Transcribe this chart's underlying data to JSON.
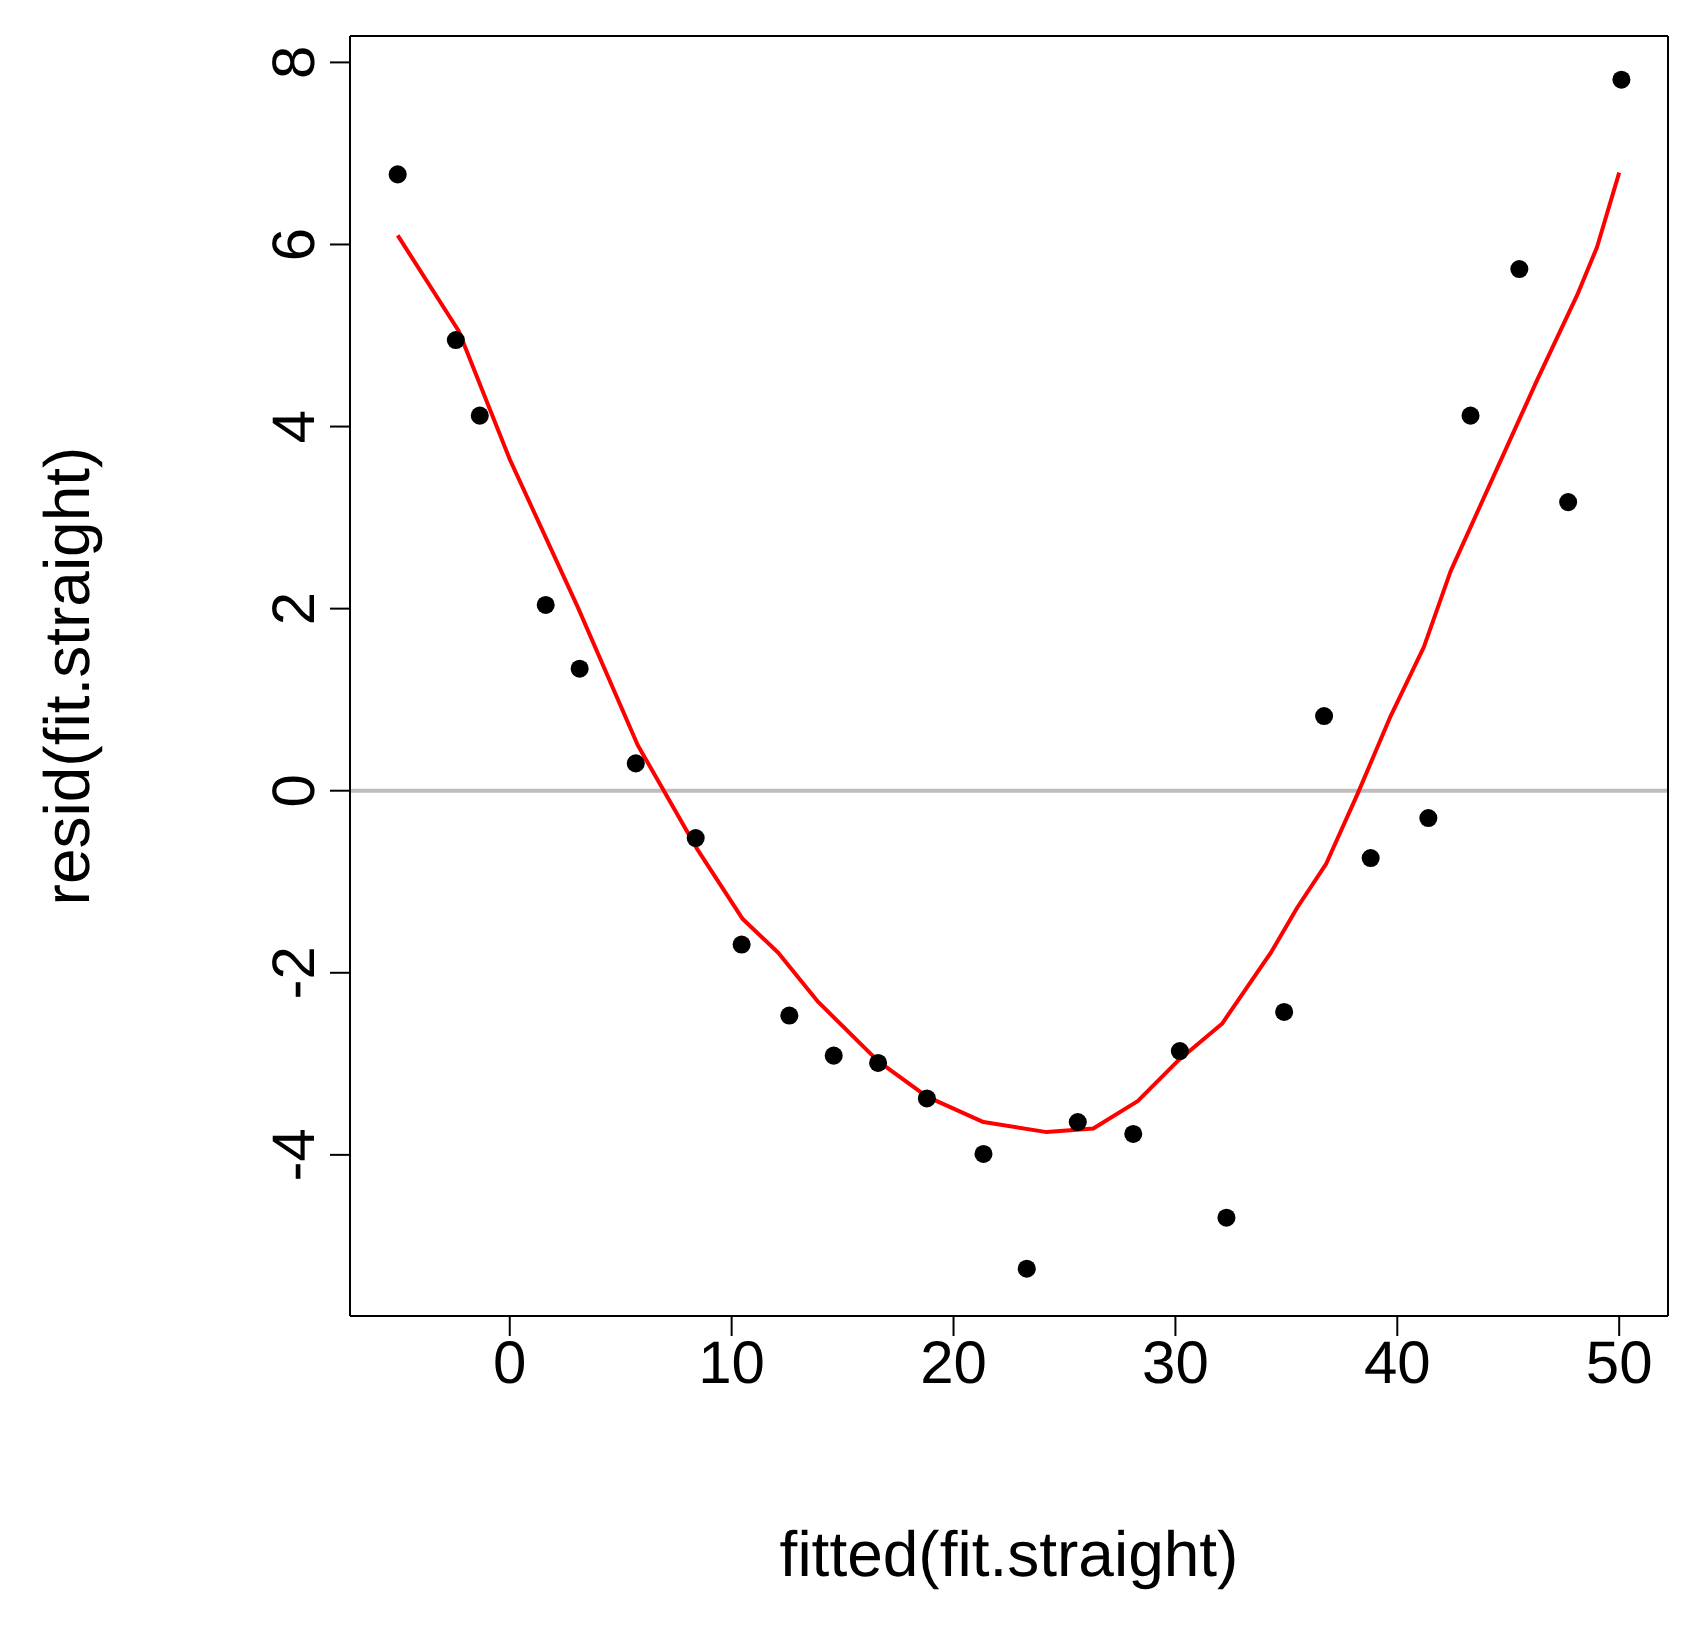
{
  "chart_data": {
    "type": "scatter",
    "xlabel": "fitted(fit.straight)",
    "ylabel": "resid(fit.straight)",
    "xlim": [
      -7.2,
      52.2
    ],
    "ylim": [
      -5.77,
      8.29
    ],
    "xticks": [
      0,
      10,
      20,
      30,
      40,
      50
    ],
    "yticks": [
      -4,
      -2,
      0,
      2,
      4,
      6,
      8
    ],
    "grid": false,
    "ref_lines": [
      {
        "axis": "y",
        "value": 0,
        "color": "#bebebe"
      }
    ],
    "series": [
      {
        "marker": "circle",
        "color": "#000000",
        "x": [
          -5.05,
          -2.43,
          -1.35,
          1.62,
          3.15,
          5.68,
          8.38,
          10.45,
          12.6,
          14.6,
          16.6,
          18.8,
          21.35,
          23.3,
          25.6,
          28.1,
          30.2,
          32.3,
          34.9,
          36.7,
          38.8,
          41.4,
          43.3,
          45.5,
          47.7,
          50.1
        ],
        "values": [
          6.77,
          4.95,
          4.12,
          2.04,
          1.34,
          0.3,
          -0.52,
          -1.69,
          -2.47,
          -2.91,
          -2.99,
          -3.38,
          -3.99,
          -5.25,
          -3.64,
          -3.77,
          -2.86,
          -4.69,
          -2.43,
          0.82,
          -0.74,
          -0.3,
          4.12,
          5.73,
          3.17,
          7.81
        ]
      },
      {
        "type": "line",
        "color": "#ff0000",
        "line_style": "solid",
        "x": [
          -5.05,
          -2.3,
          0,
          3.06,
          5.77,
          8.47,
          10.5,
          12.1,
          13.9,
          16.6,
          18.8,
          21.35,
          24.2,
          26.3,
          28.3,
          30.1,
          32.1,
          34.3,
          35.5,
          36.8,
          38.2,
          39.7,
          41.2,
          42.4,
          44.5,
          46.3,
          48.1,
          49,
          50
        ],
        "values": [
          6.1,
          5.05,
          3.64,
          2.02,
          0.5,
          -0.65,
          -1.41,
          -1.78,
          -2.32,
          -2.97,
          -3.36,
          -3.64,
          -3.75,
          -3.71,
          -3.41,
          -2.97,
          -2.56,
          -1.78,
          -1.28,
          -0.8,
          -0.04,
          0.82,
          1.58,
          2.41,
          3.54,
          4.51,
          5.44,
          5.97,
          6.79
        ]
      }
    ]
  }
}
